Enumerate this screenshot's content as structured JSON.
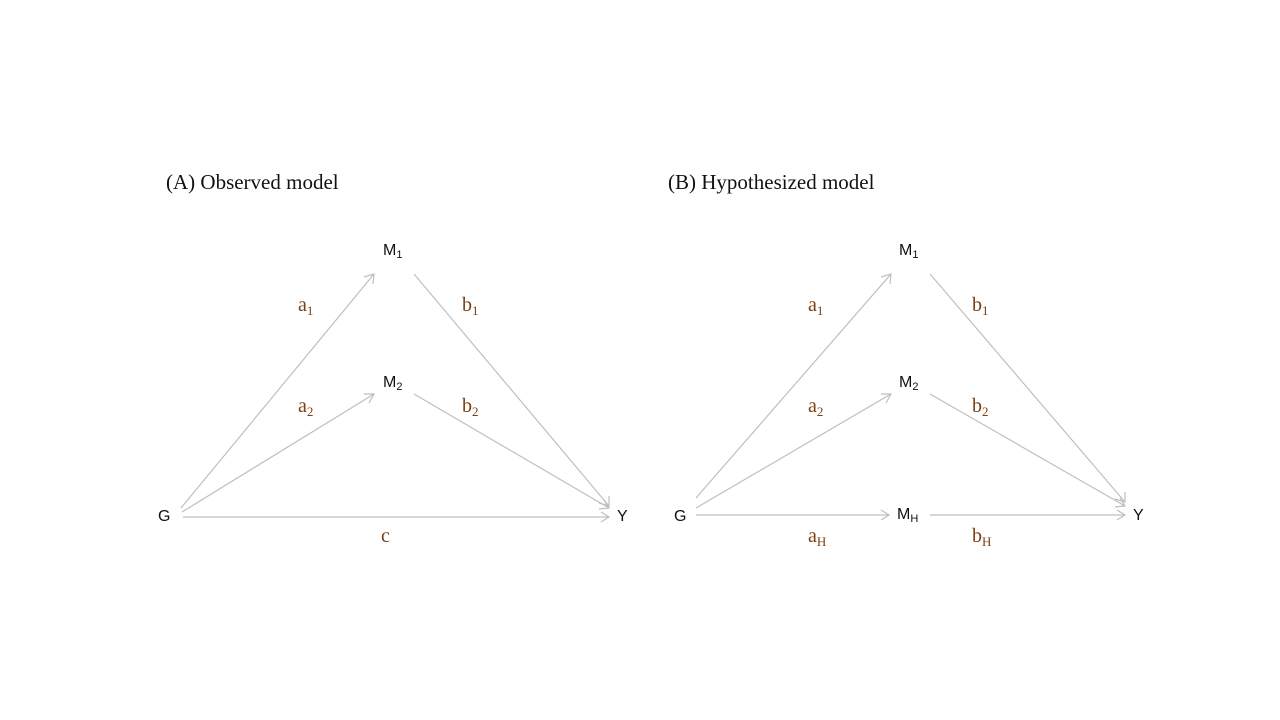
{
  "panel_a": {
    "title": "(A) Observed model",
    "nodes": {
      "g": "G",
      "y": "Y",
      "m1": {
        "base": "M",
        "sub": "1"
      },
      "m2": {
        "base": "M",
        "sub": "2"
      }
    },
    "edges": {
      "a1": {
        "base": "a",
        "sub": "1"
      },
      "a2": {
        "base": "a",
        "sub": "2"
      },
      "b1": {
        "base": "b",
        "sub": "1"
      },
      "b2": {
        "base": "b",
        "sub": "2"
      },
      "c": "c"
    }
  },
  "panel_b": {
    "title": "(B) Hypothesized model",
    "nodes": {
      "g": "G",
      "y": "Y",
      "m1": {
        "base": "M",
        "sub": "1"
      },
      "m2": {
        "base": "M",
        "sub": "2"
      },
      "mh": {
        "base": "M",
        "sub": "H"
      }
    },
    "edges": {
      "a1": {
        "base": "a",
        "sub": "1"
      },
      "a2": {
        "base": "a",
        "sub": "2"
      },
      "b1": {
        "base": "b",
        "sub": "1"
      },
      "b2": {
        "base": "b",
        "sub": "2"
      },
      "ah": {
        "base": "a",
        "sub": "H"
      },
      "bh": {
        "base": "b",
        "sub": "H"
      }
    }
  },
  "colors": {
    "edge_line": "#bfbfbf",
    "edge_label": "#7b3f12",
    "node_text": "#111111"
  }
}
